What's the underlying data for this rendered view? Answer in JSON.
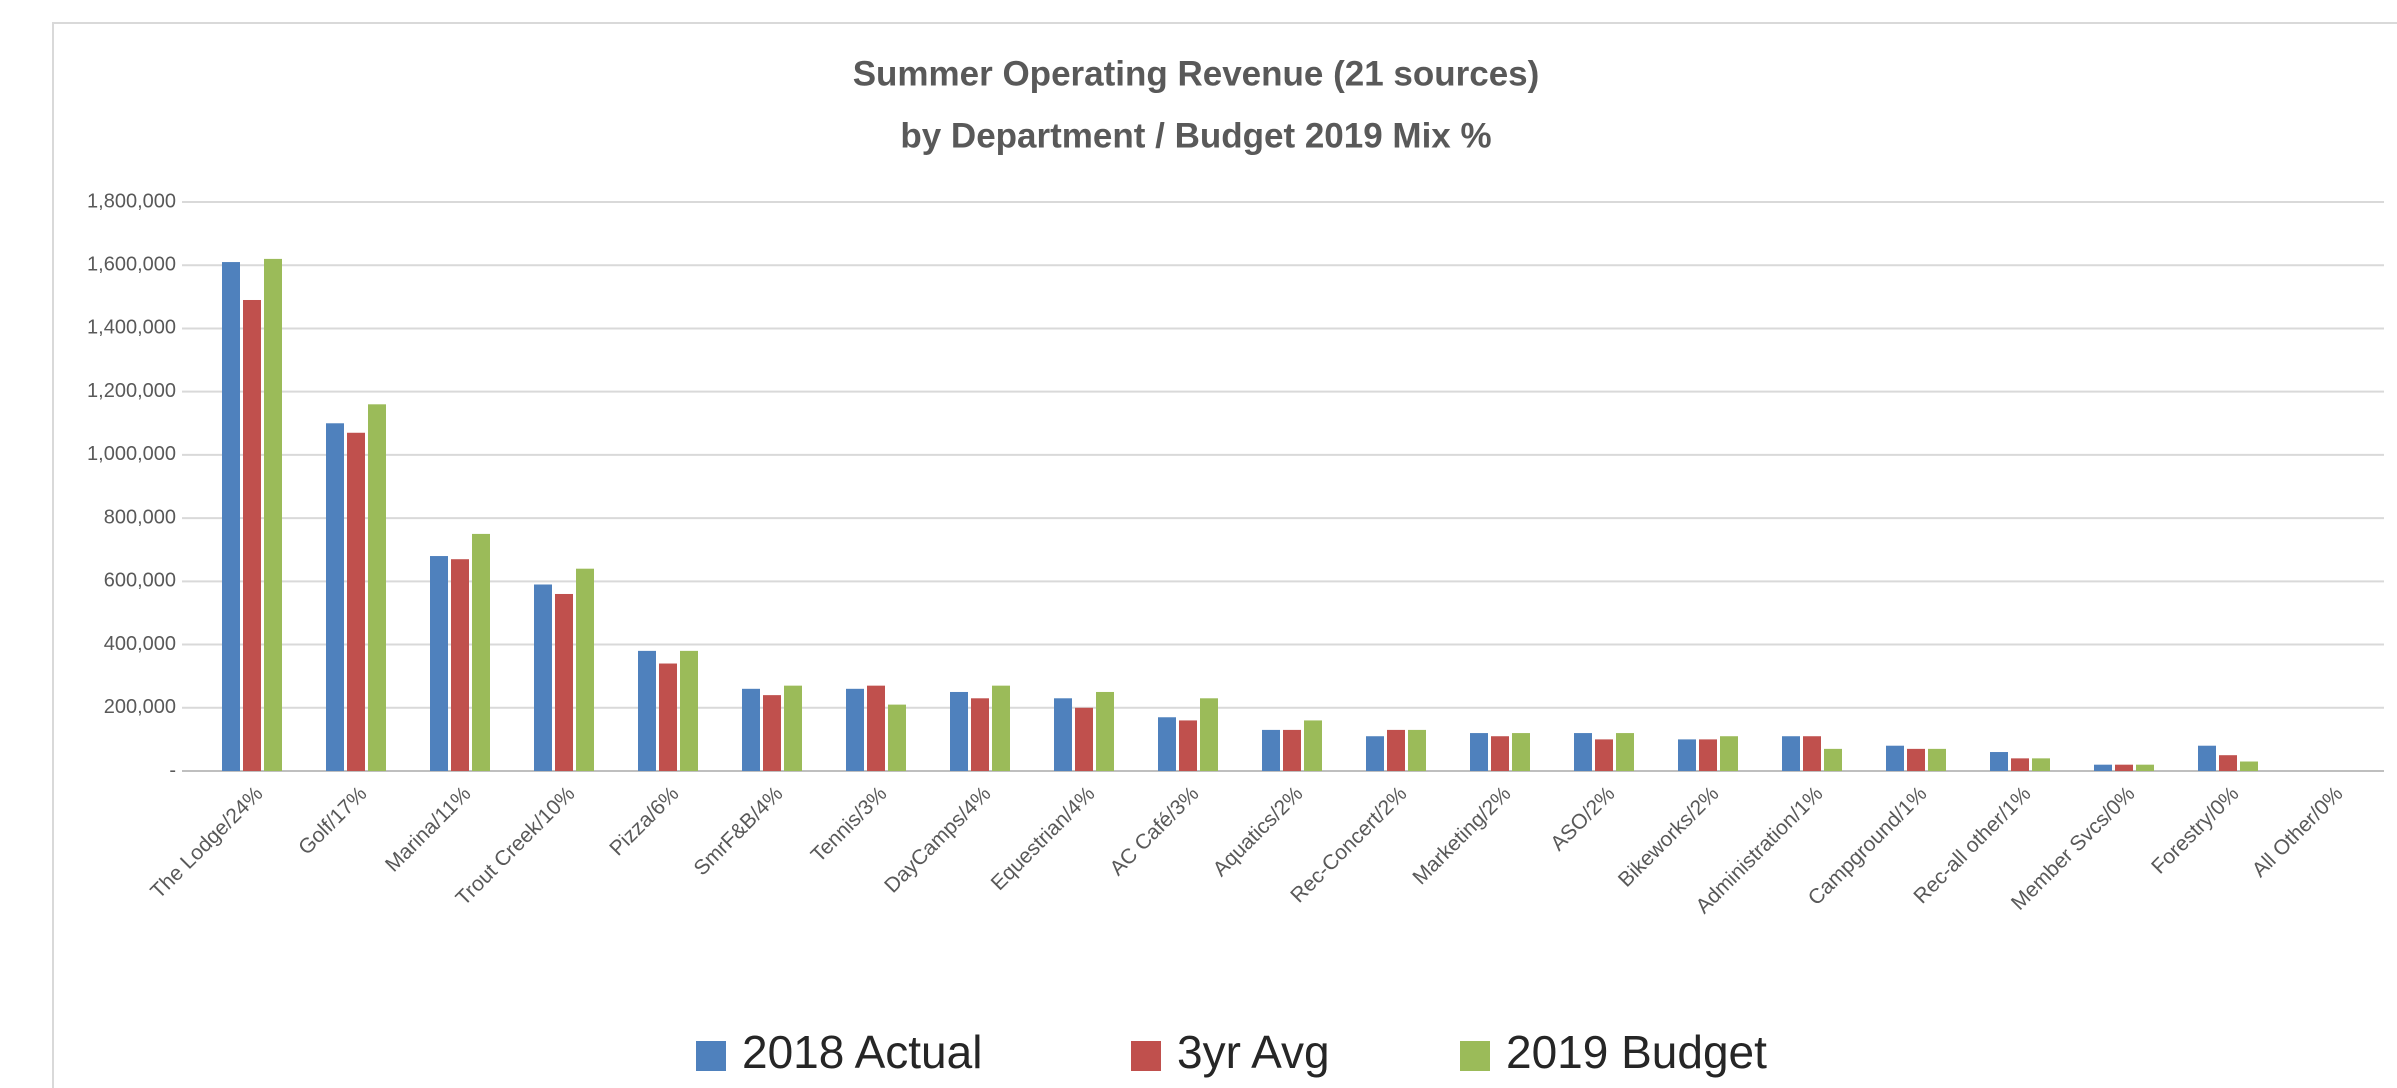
{
  "chart_data": {
    "type": "bar",
    "title": "Summer Operating Revenue  (21 sources)",
    "subtitle": "by Department / Budget 2019 Mix %",
    "categories": [
      "The Lodge/24%",
      "Golf/17%",
      "Marina/11%",
      "Trout Creek/10%",
      "Pizza/6%",
      "SmrF&B/4%",
      "Tennis/3%",
      "DayCamps/4%",
      "Equestrian/4%",
      "AC Café/3%",
      "Aquatics/2%",
      "Rec-Concert/2%",
      "Marketing/2%",
      "ASO/2%",
      "Bikeworks/2%",
      "Administration/1%",
      "Campground/1%",
      "Rec-all other/1%",
      "Member Svcs/0%",
      "Forestry/0%",
      "All Other/0%"
    ],
    "series": [
      {
        "name": "2018 Actual",
        "color": "#4f81bd",
        "values": [
          1610000,
          1100000,
          680000,
          590000,
          380000,
          260000,
          260000,
          250000,
          230000,
          170000,
          130000,
          110000,
          120000,
          120000,
          100000,
          110000,
          80000,
          60000,
          20000,
          80000,
          0
        ]
      },
      {
        "name": "3yr Avg",
        "color": "#c0504d",
        "values": [
          1490000,
          1070000,
          670000,
          560000,
          340000,
          240000,
          270000,
          230000,
          200000,
          160000,
          130000,
          130000,
          110000,
          100000,
          100000,
          110000,
          70000,
          40000,
          20000,
          50000,
          0
        ]
      },
      {
        "name": "2019 Budget",
        "color": "#9bbb59",
        "values": [
          1620000,
          1160000,
          750000,
          640000,
          380000,
          270000,
          210000,
          270000,
          250000,
          230000,
          160000,
          130000,
          120000,
          120000,
          110000,
          70000,
          70000,
          40000,
          20000,
          30000,
          0
        ]
      }
    ],
    "ylim": [
      0,
      1800000
    ],
    "yticks": [
      {
        "value": 0,
        "label": "-"
      },
      {
        "value": 200000,
        "label": "200,000"
      },
      {
        "value": 400000,
        "label": "400,000"
      },
      {
        "value": 600000,
        "label": "600,000"
      },
      {
        "value": 800000,
        "label": "800,000"
      },
      {
        "value": 1000000,
        "label": "1,000,000"
      },
      {
        "value": 1200000,
        "label": "1,200,000"
      },
      {
        "value": 1400000,
        "label": "1,400,000"
      },
      {
        "value": 1600000,
        "label": "1,600,000"
      },
      {
        "value": 1800000,
        "label": "1,800,000"
      }
    ],
    "grid": true,
    "legend": "bottom"
  }
}
